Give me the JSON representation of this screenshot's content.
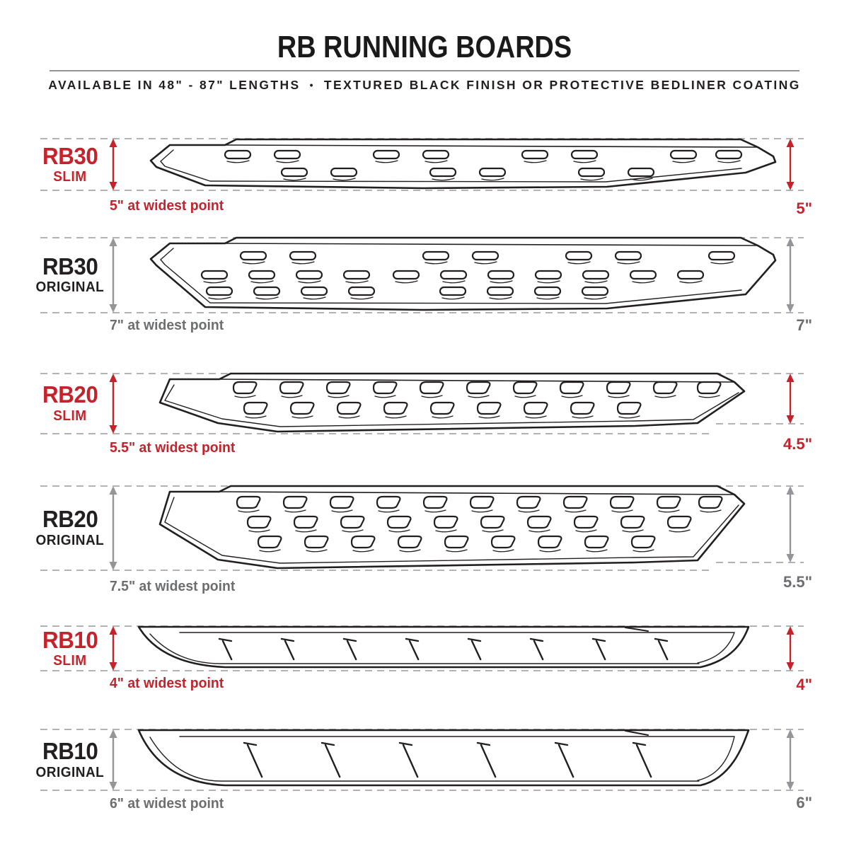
{
  "header": {
    "title": "RB RUNNING BOARDS",
    "subtitle_left": "AVAILABLE IN 48\" - 87\" LENGTHS",
    "subtitle_bullet": "•",
    "subtitle_right": "TEXTURED BLACK FINISH OR PROTECTIVE BEDLINER COATING"
  },
  "colors": {
    "accent_red": "#C4232B",
    "text_black": "#231F20",
    "text_gray": "#6D6E71",
    "arrow_gray": "#939598",
    "dash_gray": "#B1B3B5",
    "line_ink": "#231F20"
  },
  "rows": [
    {
      "model": "RB30",
      "variant": "SLIM",
      "style": "slim",
      "width_caption": "5\" at widest point",
      "height_value": "5\""
    },
    {
      "model": "RB30",
      "variant": "ORIGINAL",
      "style": "orig",
      "width_caption": "7\" at widest point",
      "height_value": "7\""
    },
    {
      "model": "RB20",
      "variant": "SLIM",
      "style": "slim",
      "width_caption": "5.5\" at widest point",
      "height_value": "4.5\""
    },
    {
      "model": "RB20",
      "variant": "ORIGINAL",
      "style": "orig",
      "width_caption": "7.5\" at widest point",
      "height_value": "5.5\""
    },
    {
      "model": "RB10",
      "variant": "SLIM",
      "style": "slim",
      "width_caption": "4\" at widest point",
      "height_value": "4\""
    },
    {
      "model": "RB10",
      "variant": "ORIGINAL",
      "style": "orig",
      "width_caption": "6\" at widest point",
      "height_value": "6\""
    }
  ]
}
